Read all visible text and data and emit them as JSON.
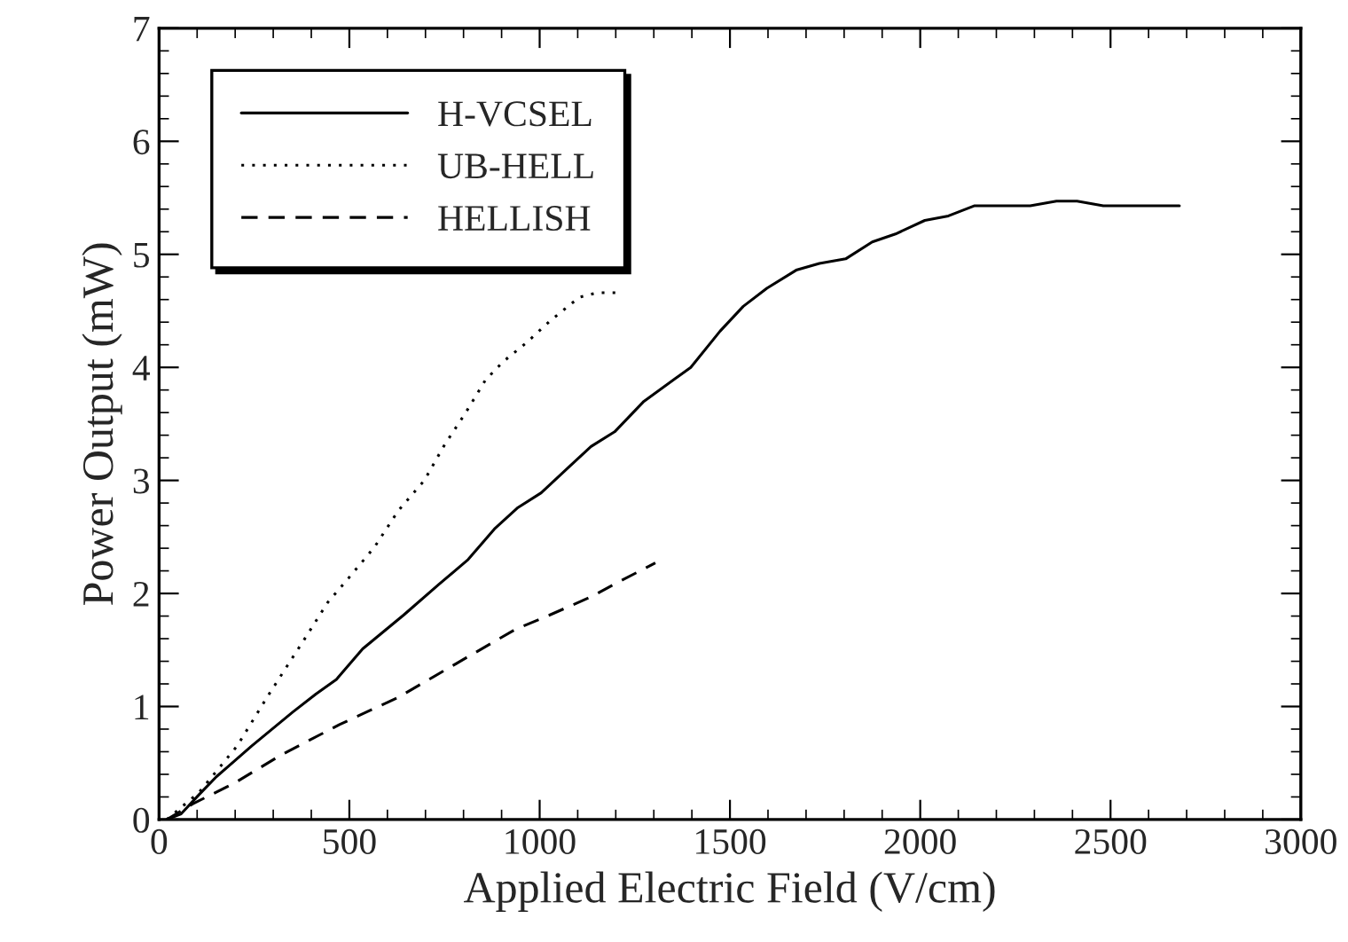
{
  "chart_data": {
    "type": "line",
    "xlabel": "Applied Electric Field (V/cm)",
    "ylabel": "Power Output (mW)",
    "xlim": [
      0,
      3000
    ],
    "ylim": [
      0,
      7
    ],
    "xticks": [
      0,
      500,
      1000,
      1500,
      2000,
      2500,
      3000
    ],
    "yticks": [
      0,
      1,
      2,
      3,
      4,
      5,
      6,
      7
    ],
    "legend": "top left",
    "grid": false,
    "marker": "none",
    "series": [
      {
        "name": "H-VCSEL",
        "color": "#000000",
        "line_style": "solid",
        "x": [
          20,
          58,
          105,
          151,
          243,
          351,
          412,
          466,
          535,
          643,
          735,
          812,
          881,
          943,
          1004,
          1074,
          1135,
          1197,
          1274,
          1397,
          1474,
          1535,
          1597,
          1674,
          1735,
          1804,
          1874,
          1935,
          2012,
          2074,
          2143,
          2289,
          2358,
          2412,
          2481,
          2681
        ],
        "values": [
          0,
          0.05,
          0.22,
          0.38,
          0.65,
          0.95,
          1.11,
          1.24,
          1.51,
          1.81,
          2.08,
          2.3,
          2.57,
          2.76,
          2.89,
          3.11,
          3.3,
          3.43,
          3.7,
          4.0,
          4.32,
          4.54,
          4.7,
          4.86,
          4.92,
          4.96,
          5.11,
          5.18,
          5.3,
          5.34,
          5.43,
          5.43,
          5.47,
          5.47,
          5.43,
          5.43
        ]
      },
      {
        "name": "UB-HELL",
        "color": "#000000",
        "line_style": "dotted",
        "x": [
          20,
          105,
          205,
          289,
          381,
          443,
          504,
          566,
          628,
          697,
          751,
          804,
          858,
          904,
          966,
          1027,
          1104,
          1150,
          1212
        ],
        "values": [
          0,
          0.24,
          0.65,
          1.11,
          1.59,
          1.92,
          2.16,
          2.41,
          2.73,
          3.0,
          3.32,
          3.59,
          3.89,
          4.05,
          4.22,
          4.41,
          4.62,
          4.66,
          4.66
        ]
      },
      {
        "name": "HELLISH",
        "color": "#000000",
        "line_style": "dashed",
        "x": [
          20,
          89,
          197,
          320,
          474,
          628,
          781,
          935,
          1027,
          1135,
          1212,
          1304
        ],
        "values": [
          0,
          0.14,
          0.32,
          0.57,
          0.84,
          1.08,
          1.38,
          1.68,
          1.81,
          1.97,
          2.11,
          2.27
        ]
      }
    ]
  }
}
